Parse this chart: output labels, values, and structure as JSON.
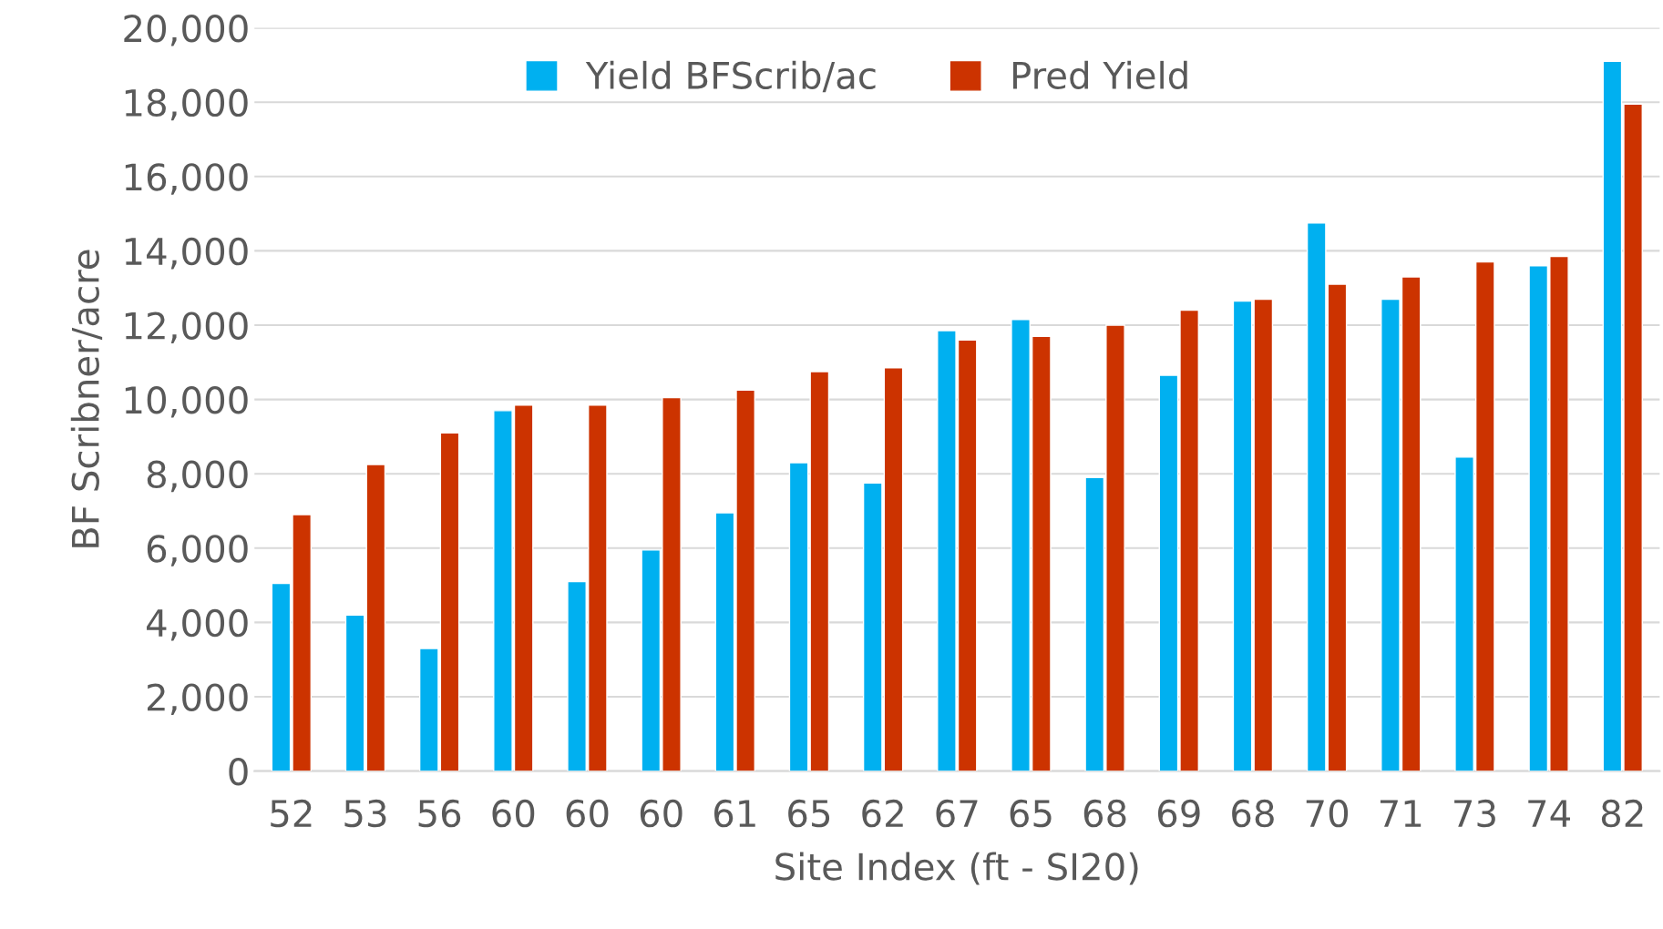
{
  "chart_data": {
    "type": "bar",
    "xlabel": "Site Index (ft - SI20)",
    "ylabel": "BF Scribner/acre",
    "categories": [
      "52",
      "53",
      "56",
      "60",
      "60",
      "60",
      "61",
      "65",
      "62",
      "67",
      "65",
      "68",
      "69",
      "68",
      "70",
      "71",
      "73",
      "74",
      "82"
    ],
    "series": [
      {
        "name": "Yield BFScrib/ac",
        "color": "#00b0f0",
        "values": [
          5050,
          4200,
          3300,
          9700,
          5100,
          5950,
          6950,
          8300,
          7750,
          11850,
          12150,
          7900,
          10650,
          12650,
          14750,
          12700,
          8450,
          13600,
          19100
        ]
      },
      {
        "name": "Pred Yield",
        "color": "#cc3300",
        "values": [
          6900,
          8250,
          9100,
          9850,
          9850,
          10050,
          10250,
          10750,
          10850,
          11600,
          11700,
          12000,
          12400,
          12700,
          13100,
          13300,
          13700,
          13850,
          17950
        ]
      }
    ],
    "ylim": [
      0,
      20000
    ],
    "yticks": [
      {
        "value": 0,
        "label": "0"
      },
      {
        "value": 2000,
        "label": "2,000"
      },
      {
        "value": 4000,
        "label": "4,000"
      },
      {
        "value": 6000,
        "label": "6,000"
      },
      {
        "value": 8000,
        "label": "8,000"
      },
      {
        "value": 10000,
        "label": "10,000"
      },
      {
        "value": 12000,
        "label": "12,000"
      },
      {
        "value": 14000,
        "label": "14,000"
      },
      {
        "value": 16000,
        "label": "16,000"
      },
      {
        "value": 18000,
        "label": "18,000"
      },
      {
        "value": 20000,
        "label": "20,000"
      }
    ],
    "grid": "y",
    "legend": "top"
  }
}
